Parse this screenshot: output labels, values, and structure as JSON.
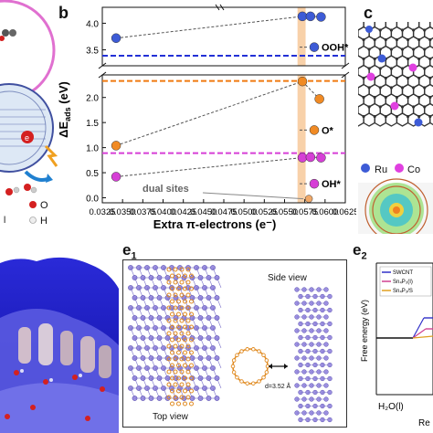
{
  "panel_b": {
    "label": "b",
    "chart_data": {
      "type": "scatter",
      "xlabel": "Extra π-electrons (e⁻)",
      "ylabel": "ΔE_ads (eV)",
      "xlim": [
        0.0325,
        0.0625
      ],
      "ylim_lower": [
        -0.1,
        2.45
      ],
      "ylim_upper": [
        3.2,
        4.3
      ],
      "x_ticks": [
        "0.0325",
        "0.0350",
        "0.0375",
        "0.0400",
        "0.0425",
        "0.0450",
        "0.0475",
        "0.0500",
        "0.0525",
        "0.0550",
        "0.0575",
        "0.0600",
        "0.0625"
      ],
      "y_ticks_upper": [
        "3.5",
        "4.0"
      ],
      "y_ticks_lower": [
        "0.0",
        "0.5",
        "1.0",
        "1.5",
        "2.0"
      ],
      "series": [
        {
          "name": "OOH*",
          "color": "#3d5bd6",
          "x": [
            0.0342,
            0.0572,
            0.0582,
            0.0595
          ],
          "y": [
            3.72,
            4.13,
            4.13,
            4.12
          ]
        },
        {
          "name": "O*",
          "color": "#f08a24",
          "x": [
            0.0342,
            0.0572,
            0.0593
          ],
          "y": [
            1.04,
            2.32,
            1.97
          ]
        },
        {
          "name": "OH*",
          "color": "#d63fd6",
          "x": [
            0.0342,
            0.0572,
            0.0582,
            0.0595
          ],
          "y": [
            0.42,
            0.8,
            0.81,
            0.8
          ]
        },
        {
          "name": "dual sites",
          "color": "#f0a868",
          "x": [
            0.058
          ],
          "y": [
            -0.02
          ]
        }
      ],
      "reference_lines": [
        {
          "series": "OOH*",
          "y": 3.39,
          "color": "#2330d6"
        },
        {
          "series": "O*",
          "y": 2.33,
          "color": "#f07a10"
        },
        {
          "series": "OH*",
          "y": 0.89,
          "color": "#d63fd6"
        }
      ],
      "highlight_band_x": [
        0.0566,
        0.0576
      ],
      "annotation": "dual sites",
      "legend_placement": "right"
    }
  },
  "panel_c": {
    "label": "c",
    "legend": [
      {
        "label": "Ru",
        "color": "#3d5bd6"
      },
      {
        "label": "Co",
        "color": "#e040e0"
      }
    ]
  },
  "panel_a": {
    "labels": [
      "O",
      "H"
    ],
    "colors": {
      "O": "#d42020",
      "H": "#e8e8e8"
    }
  },
  "panel_e1": {
    "label": "e",
    "sub": "1",
    "top_view": "Top view",
    "side_view": "Side view",
    "distance": "d=3.52 Å"
  },
  "panel_e2": {
    "label": "e",
    "sub": "2",
    "ylabel": "Free energy (eV)",
    "x_first": "H₂O(l)",
    "x_partial": "Re",
    "legend": [
      {
        "label": "SWCNT",
        "color": "#3030c8"
      },
      {
        "label": "Sn₄P₃(I)",
        "color": "#d04090"
      },
      {
        "label": "Sn₄P₃/S",
        "color": "#e0a020"
      }
    ]
  }
}
